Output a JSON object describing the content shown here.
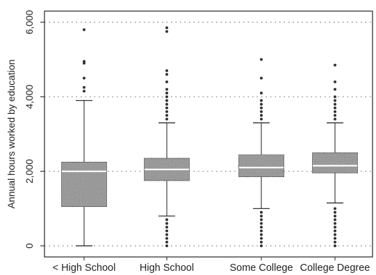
{
  "chart_data": {
    "type": "box",
    "title": "",
    "xlabel": "",
    "ylabel": "Annual hours worked by education",
    "ylim": [
      0,
      6000
    ],
    "yticks": [
      {
        "value": 0,
        "label": "0"
      },
      {
        "value": 2000,
        "label": "2,000"
      },
      {
        "value": 4000,
        "label": "4,000"
      },
      {
        "value": 6000,
        "label": "6,000"
      }
    ],
    "grid": "dotted horizontal at y ticks",
    "categories": [
      "< High School",
      "High School",
      "Some College",
      "College Degree"
    ],
    "boxes": [
      {
        "category": "< High School",
        "whisker_low": 0,
        "q1": 1050,
        "median": 2000,
        "q3": 2250,
        "whisker_high": 3900,
        "outliers": [
          4150,
          4250,
          4500,
          4900,
          4950,
          5800
        ]
      },
      {
        "category": "High School",
        "whisker_low": 800,
        "q1": 1750,
        "median": 2050,
        "q3": 2350,
        "whisker_high": 3300,
        "outliers": [
          0,
          100,
          200,
          300,
          400,
          500,
          600,
          700,
          3400,
          3500,
          3600,
          3700,
          3800,
          3900,
          4000,
          4100,
          4200,
          4400,
          4600,
          4700,
          5750,
          5850
        ]
      },
      {
        "category": "Some College",
        "whisker_low": 1000,
        "q1": 1850,
        "median": 2100,
        "q3": 2450,
        "whisker_high": 3300,
        "outliers": [
          0,
          100,
          200,
          300,
          400,
          500,
          600,
          700,
          800,
          900,
          3400,
          3500,
          3600,
          3700,
          3800,
          3900,
          4100,
          4500,
          5000
        ]
      },
      {
        "category": "College Degree",
        "whisker_low": 1150,
        "q1": 1950,
        "median": 2150,
        "q3": 2500,
        "whisker_high": 3300,
        "outliers": [
          0,
          100,
          200,
          300,
          400,
          500,
          600,
          700,
          800,
          900,
          1000,
          3400,
          3500,
          3600,
          3700,
          3800,
          3900,
          4000,
          4200,
          4400,
          4850
        ]
      }
    ],
    "colors": {
      "box_fill": "#8a8a8a",
      "line": "#1a1a1a",
      "median": "#ffffff",
      "grid": "#555555"
    }
  }
}
